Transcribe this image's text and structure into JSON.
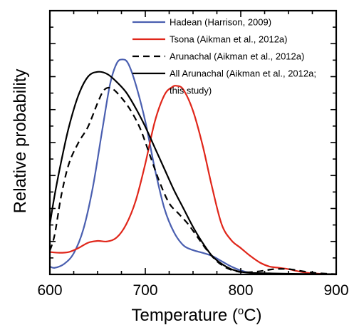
{
  "chart_data": {
    "type": "line",
    "xlabel": "Temperature (",
    "xlabel_sup": "o",
    "xlabel_tail": "C)",
    "ylabel": "Relative probability",
    "xlim": [
      600,
      900
    ],
    "ylim": [
      0,
      1
    ],
    "x_ticks": [
      600,
      700,
      800,
      900
    ],
    "x_tick_labels": [
      "600",
      "700",
      "800",
      "900"
    ],
    "y_tick_labels_shown": false,
    "grid": false,
    "legend_position": "top-right",
    "series": [
      {
        "name": "Hadean (Harrison, 2009)",
        "color": "#4a5fb0",
        "dash": "solid",
        "points": [
          [
            600,
            0.03
          ],
          [
            605,
            0.025
          ],
          [
            615,
            0.04
          ],
          [
            625,
            0.08
          ],
          [
            635,
            0.17
          ],
          [
            645,
            0.33
          ],
          [
            655,
            0.55
          ],
          [
            663,
            0.72
          ],
          [
            670,
            0.8
          ],
          [
            676,
            0.815
          ],
          [
            682,
            0.8
          ],
          [
            690,
            0.72
          ],
          [
            700,
            0.58
          ],
          [
            710,
            0.4
          ],
          [
            720,
            0.25
          ],
          [
            730,
            0.16
          ],
          [
            740,
            0.11
          ],
          [
            750,
            0.092
          ],
          [
            760,
            0.082
          ],
          [
            770,
            0.07
          ],
          [
            780,
            0.05
          ],
          [
            790,
            0.03
          ],
          [
            800,
            0.015
          ],
          [
            810,
            0.006
          ],
          [
            820,
            0.003
          ],
          [
            850,
            0.0015
          ],
          [
            900,
            0.001
          ]
        ]
      },
      {
        "name": "Tsona (Aikman et al., 2012a)",
        "color": "#e0261a",
        "dash": "solid",
        "points": [
          [
            600,
            0.085
          ],
          [
            610,
            0.082
          ],
          [
            620,
            0.085
          ],
          [
            630,
            0.1
          ],
          [
            640,
            0.12
          ],
          [
            650,
            0.127
          ],
          [
            660,
            0.125
          ],
          [
            670,
            0.14
          ],
          [
            680,
            0.19
          ],
          [
            690,
            0.28
          ],
          [
            700,
            0.42
          ],
          [
            710,
            0.58
          ],
          [
            720,
            0.68
          ],
          [
            728,
            0.71
          ],
          [
            733,
            0.715
          ],
          [
            740,
            0.7
          ],
          [
            750,
            0.62
          ],
          [
            760,
            0.49
          ],
          [
            770,
            0.33
          ],
          [
            780,
            0.19
          ],
          [
            790,
            0.13
          ],
          [
            800,
            0.1
          ],
          [
            810,
            0.07
          ],
          [
            820,
            0.045
          ],
          [
            830,
            0.03
          ],
          [
            840,
            0.025
          ],
          [
            850,
            0.02
          ],
          [
            860,
            0.012
          ],
          [
            870,
            0.006
          ],
          [
            880,
            0.003
          ],
          [
            890,
            0.001
          ],
          [
            900,
            0.0
          ]
        ]
      },
      {
        "name": "Arunachal (Aikman et al., 2012a)",
        "color": "#000000",
        "dash": "dashed",
        "points": [
          [
            600,
            0.09
          ],
          [
            605,
            0.15
          ],
          [
            612,
            0.3
          ],
          [
            620,
            0.42
          ],
          [
            630,
            0.5
          ],
          [
            640,
            0.56
          ],
          [
            650,
            0.65
          ],
          [
            657,
            0.7
          ],
          [
            665,
            0.705
          ],
          [
            675,
            0.67
          ],
          [
            685,
            0.62
          ],
          [
            695,
            0.55
          ],
          [
            705,
            0.45
          ],
          [
            715,
            0.35
          ],
          [
            725,
            0.27
          ],
          [
            735,
            0.23
          ],
          [
            745,
            0.19
          ],
          [
            755,
            0.14
          ],
          [
            765,
            0.09
          ],
          [
            775,
            0.05
          ],
          [
            785,
            0.025
          ],
          [
            795,
            0.012
          ],
          [
            805,
            0.008
          ],
          [
            820,
            0.012
          ],
          [
            835,
            0.02
          ],
          [
            850,
            0.02
          ],
          [
            865,
            0.012
          ],
          [
            880,
            0.005
          ],
          [
            900,
            0.001
          ]
        ]
      },
      {
        "name": "All Arunachal (Aikman et al., 2012a; this study)",
        "color": "#000000",
        "dash": "solid",
        "points": [
          [
            600,
            0.19
          ],
          [
            605,
            0.3
          ],
          [
            612,
            0.43
          ],
          [
            620,
            0.56
          ],
          [
            630,
            0.68
          ],
          [
            640,
            0.75
          ],
          [
            650,
            0.768
          ],
          [
            660,
            0.76
          ],
          [
            670,
            0.73
          ],
          [
            680,
            0.69
          ],
          [
            690,
            0.63
          ],
          [
            700,
            0.56
          ],
          [
            710,
            0.48
          ],
          [
            720,
            0.4
          ],
          [
            730,
            0.32
          ],
          [
            740,
            0.25
          ],
          [
            750,
            0.18
          ],
          [
            760,
            0.12
          ],
          [
            770,
            0.07
          ],
          [
            780,
            0.04
          ],
          [
            790,
            0.02
          ],
          [
            800,
            0.01
          ],
          [
            810,
            0.006
          ],
          [
            830,
            0.004
          ],
          [
            860,
            0.002
          ],
          [
            900,
            0.001
          ]
        ]
      }
    ]
  },
  "legend": {
    "items": [
      {
        "label": "Hadean (Harrison, 2009)",
        "color": "#4a5fb0",
        "dash": "solid"
      },
      {
        "label": "Tsona (Aikman et al., 2012a)",
        "color": "#e0261a",
        "dash": "solid"
      },
      {
        "label": "Arunachal (Aikman et al., 2012a)",
        "color": "#000000",
        "dash": "dashed"
      },
      {
        "label": "All Arunachal (Aikman et al., 2012a;",
        "label_line2": "this study)",
        "color": "#000000",
        "dash": "solid"
      }
    ]
  }
}
